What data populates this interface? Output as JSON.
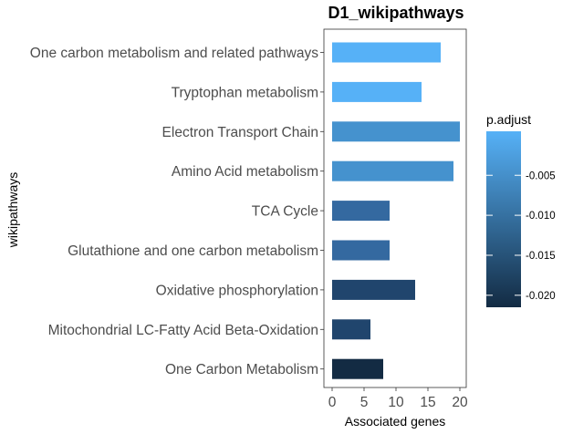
{
  "chart_data": {
    "type": "bar",
    "orientation": "horizontal",
    "title": "D1_wikipathways",
    "xlabel": "Associated genes",
    "ylabel": "wikipathways",
    "xlim": [
      0,
      20
    ],
    "x_ticks": [
      "0",
      "5",
      "10",
      "15",
      "20"
    ],
    "grid": false,
    "categories": [
      "One carbon metabolism and related pathways",
      "Tryptophan metabolism",
      "Electron Transport Chain",
      "Amino Acid metabolism",
      "TCA Cycle",
      "Glutathione and one carbon metabolism",
      "Oxidative phosphorylation",
      "Mitochondrial LC-Fatty Acid Beta-Oxidation",
      "One Carbon Metabolism"
    ],
    "values": [
      17,
      14,
      20,
      19,
      9,
      9,
      13,
      6,
      8
    ],
    "p_adjust": [
      -0.0005,
      -0.0005,
      -0.0045,
      -0.0045,
      -0.0095,
      -0.0095,
      -0.0165,
      -0.0165,
      -0.022
    ],
    "colors": [
      "#56B1F7",
      "#56B1F7",
      "#4592CE",
      "#4592CE",
      "#3469A0",
      "#3469A0",
      "#20456D",
      "#20456D",
      "#132B43"
    ],
    "legend": {
      "title": "p.adjust",
      "placement": "right",
      "ticks": [
        "-0.005",
        "-0.010",
        "-0.015",
        "-0.020"
      ],
      "tick_values": [
        -0.005,
        -0.01,
        -0.015,
        -0.02
      ],
      "range": [
        -0.0215,
        0.0005
      ],
      "color_high": "#56B1F7",
      "color_low": "#132B43"
    }
  }
}
